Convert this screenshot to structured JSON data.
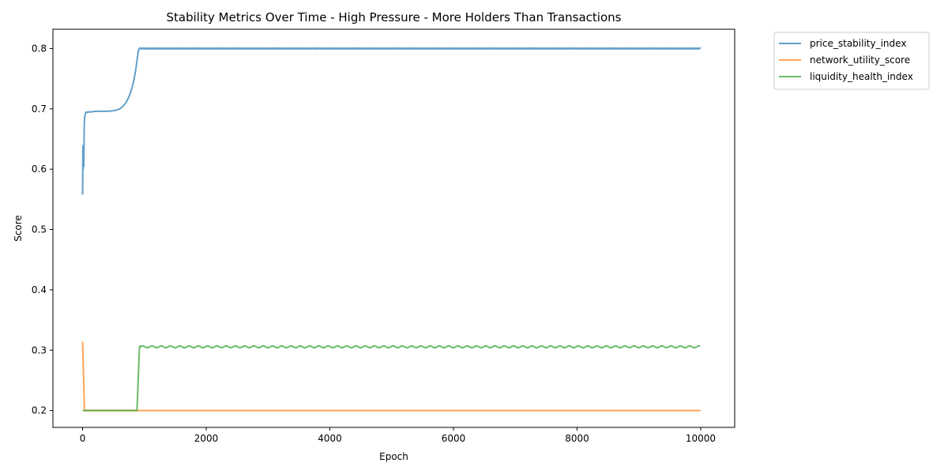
{
  "chart_data": {
    "type": "line",
    "title": "Stability Metrics Over Time - High Pressure - More Holders Than Transactions",
    "xlabel": "Epoch",
    "ylabel": "Score",
    "xlim": [
      -480,
      10550
    ],
    "ylim": [
      0.172,
      0.832
    ],
    "xticks": [
      0,
      2000,
      4000,
      6000,
      8000,
      10000
    ],
    "yticks": [
      0.2,
      0.3,
      0.4,
      0.5,
      0.6,
      0.7,
      0.8
    ],
    "grid": false,
    "legend_position": "outside-top-right",
    "series": [
      {
        "name": "price_stability_index",
        "color": "#1f77b4",
        "alpha": 0.7,
        "x": [
          0,
          5,
          10,
          15,
          20,
          25,
          30,
          40,
          50,
          60,
          80,
          100,
          150,
          200,
          300,
          400,
          500,
          550,
          600,
          650,
          700,
          750,
          800,
          830,
          860,
          880,
          900,
          915,
          925,
          935,
          1000,
          10000
        ],
        "y": [
          0.558,
          0.638,
          0.6,
          0.64,
          0.605,
          0.665,
          0.683,
          0.69,
          0.694,
          0.695,
          0.694,
          0.695,
          0.695,
          0.696,
          0.696,
          0.696,
          0.697,
          0.698,
          0.7,
          0.704,
          0.71,
          0.72,
          0.735,
          0.748,
          0.765,
          0.78,
          0.795,
          0.8,
          0.801,
          0.8,
          0.8,
          0.8
        ],
        "oscillation": {
          "start": 935,
          "end": 10000,
          "center": 0.8,
          "amplitude": 0.001,
          "period": 38
        }
      },
      {
        "name": "network_utility_score",
        "color": "#ff7f0e",
        "alpha": 0.7,
        "x": [
          0,
          30,
          10000
        ],
        "y": [
          0.314,
          0.2,
          0.2
        ]
      },
      {
        "name": "liquidity_health_index",
        "color": "#2ca02c",
        "alpha": 0.7,
        "x": [
          0,
          880,
          920,
          935,
          10000
        ],
        "y": [
          0.2,
          0.2,
          0.306,
          0.307,
          0.305
        ],
        "oscillation": {
          "start": 935,
          "end": 10000,
          "center": 0.3055,
          "amplitude": 0.0015,
          "period": 150
        }
      }
    ]
  }
}
